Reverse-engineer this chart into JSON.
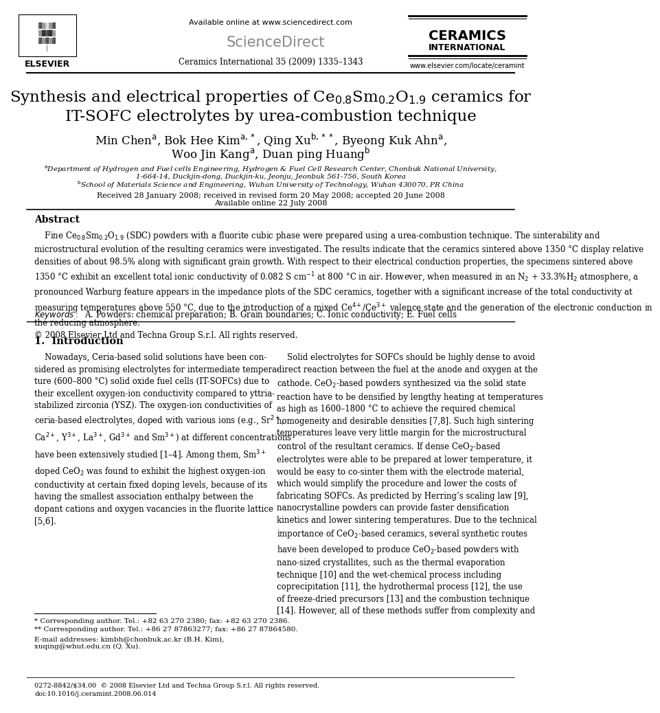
{
  "bg_color": "#ffffff",
  "header_available_online": "Available online at www.sciencedirect.com",
  "header_journal_ref": "Ceramics International 35 (2009) 1335–1343",
  "header_ceramics1": "CERAMICS",
  "header_ceramics2": "INTERNATIONAL",
  "header_website": "www.elsevier.com/locate/ceramint",
  "header_elsevier": "ELSEVIER",
  "title1": "Synthesis and electrical properties of Ce$_{0.8}$Sm$_{0.2}$O$_{1.9}$ ceramics for",
  "title2": "IT-SOFC electrolytes by urea-combustion technique",
  "authors_line1": "Min Chen$^{\\rm a}$, Bok Hee Kim$^{\\rm a,*}$, Qing Xu$^{\\rm b,**}$, Byeong Kuk Ahn$^{\\rm a}$,",
  "authors_line2": "Woo Jin Kang$^{\\rm a}$, Duan ping Huang$^{\\rm b}$",
  "aff_a1": "$^{\\rm a}$Department of Hydrogen and Fuel cells Engineering, Hydrogen & Fuel Cell Research Center, Chonbuk National University,",
  "aff_a2": "1-664-14, Duckjin-dong, Duckjin-ku, Jeonju, Jeonbuk 561-756, South Korea",
  "aff_b": "$^{\\rm b}$School of Materials Science and Engineering, Wuhan University of Technology, Wuhan 430070, PR China",
  "dates1": "Received 28 January 2008; received in revised form 20 May 2008; accepted 20 June 2008",
  "dates2": "Available online 22 July 2008",
  "abstract_heading": "Abstract",
  "abstract_body": "    Fine Ce$_{0.8}$Sm$_{0.2}$O$_{1.9}$ (SDC) powders with a fluorite cubic phase were prepared using a urea-combustion technique. The sinterability and\nmicrostructural evolution of the resulting ceramics were investigated. The results indicate that the ceramics sintered above 1350 °C display relative\ndensities of about 98.5% along with significant grain growth. With respect to their electrical conduction properties, the specimens sintered above\n1350 °C exhibit an excellent total ionic conductivity of 0.082 S cm$^{-1}$ at 800 °C in air. However, when measured in an N$_2$ + 33.3%H$_2$ atmosphere, a\npronounced Warburg feature appears in the impedance plots of the SDC ceramics, together with a significant increase of the total conductivity at\nmeasuring temperatures above 550 °C, due to the introduction of a mixed Ce$^{4+}$/Ce$^{3+}$ valence state and the generation of the electronic conduction in\nthe reducing atmosphere.\n© 2008 Elsevier Ltd and Techna Group S.r.l. All rights reserved.",
  "keywords": "$\\it{Keywords:}$  A. Powders: chemical preparation; B. Grain boundaries; C. Ionic conductivity; E. Fuel cells",
  "sec1_title": "1.  Introduction",
  "sec1_left": "    Nowadays, Ceria-based solid solutions have been con-\nsidered as promising electrolytes for intermediate tempera-\nture (600–800 °C) solid oxide fuel cells (IT-SOFCs) due to\ntheir excellent oxygen-ion conductivity compared to yttria-\nstabilized zirconia (YSZ). The oxygen-ion conductivities of\nceria-based electrolytes, doped with various ions (e.g., Sr$^{2+}$,\nCa$^{2+}$, Y$^{3+}$, La$^{3+}$, Gd$^{3+}$ and Sm$^{3+}$) at different concentrations\nhave been extensively studied [1–4]. Among them, Sm$^{3+}$\ndoped CeO$_2$ was found to exhibit the highest oxygen-ion\nconductivity at certain fixed doping levels, because of its\nhaving the smallest association enthalpy between the\ndopant cations and oxygen vacancies in the fluorite lattice\n[5,6].",
  "sec1_right": "    Solid electrolytes for SOFCs should be highly dense to avoid\ndirect reaction between the fuel at the anode and oxygen at the\ncathode. CeO$_2$-based powders synthesized via the solid state\nreaction have to be densified by lengthy heating at temperatures\nas high as 1600–1800 °C to achieve the required chemical\nhomogeneity and desirable densities [7,8]. Such high sintering\ntemperatures leave very little margin for the microstructural\ncontrol of the resultant ceramics. If dense CeO$_2$-based\nelectrolytes were able to be prepared at lower temperature, it\nwould be easy to co-sinter them with the electrode material,\nwhich would simplify the procedure and lower the costs of\nfabricating SOFCs. As predicted by Herring’s scaling law [9],\nnanocrystalline powders can provide faster densification\nkinetics and lower sintering temperatures. Due to the technical\nimportance of CeO$_2$-based ceramics, several synthetic routes\nhave been developed to produce CeO$_2$-based powders with\nnano-sized crystallites, such as the thermal evaporation\ntechnique [10] and the wet-chemical process including\ncoprecipitation [11], the hydrothermal process [12], the use\nof freeze-dried precursors [13] and the combustion technique\n[14]. However, all of these methods suffer from complexity and",
  "fn_line": "* Corresponding author. Tel.: +82 63 270 2380; fax: +82 63 270 2386.",
  "fn_dline": "** Corresponding author. Tel.: +86 27 87863277; fax: +86 27 87864580.",
  "fn_email1": "E-mail addresses: kimbh@chonbuk.ac.kr (B.H. Kim),",
  "fn_email2": "xuqing@whut.edu.cn (Q. Xu).",
  "footer1": "0272-8842/$34.00  © 2008 Elsevier Ltd and Techna Group S.r.l. All rights reserved.",
  "footer2": "doi:10.1016/j.ceramint.2008.06.014"
}
